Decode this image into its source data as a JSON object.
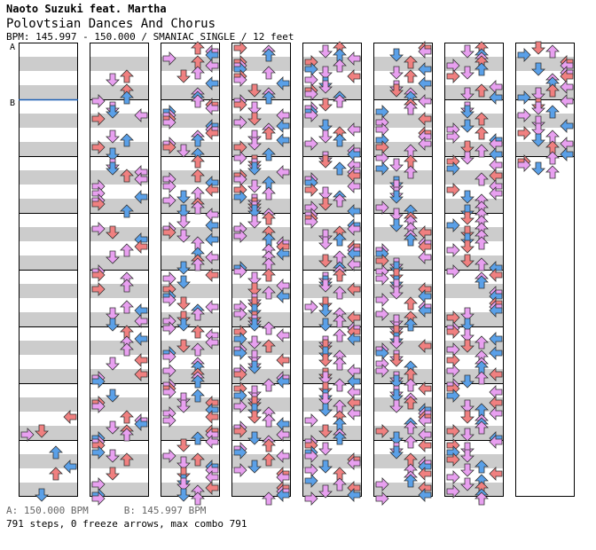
{
  "header": {
    "artist": "Naoto Suzuki feat. Martha",
    "title": "Polovtsian Dances And Chorus",
    "info": "BPM: 145.997 - 150.000 / SMANIAC SINGLE / 12 feet"
  },
  "markers": {
    "a": "A",
    "b": "B"
  },
  "footer": {
    "bpm_a": "A: 150.000 BPM",
    "bpm_b": "B: 145.997 BPM",
    "stats": "791 steps, 0 freeze arrows, max combo 791"
  },
  "chart": {
    "columns": 8,
    "measures_per_column": 8,
    "last_column_measures": 2.25,
    "stripe_colors": [
      "#ffffff",
      "#cccccc"
    ],
    "note_colors": {
      "quarter": "#f08080",
      "eighth": "#5aa0e8",
      "sixteenth": "#e8a0f0"
    },
    "bpm_change_color": "#1a5fb4"
  }
}
